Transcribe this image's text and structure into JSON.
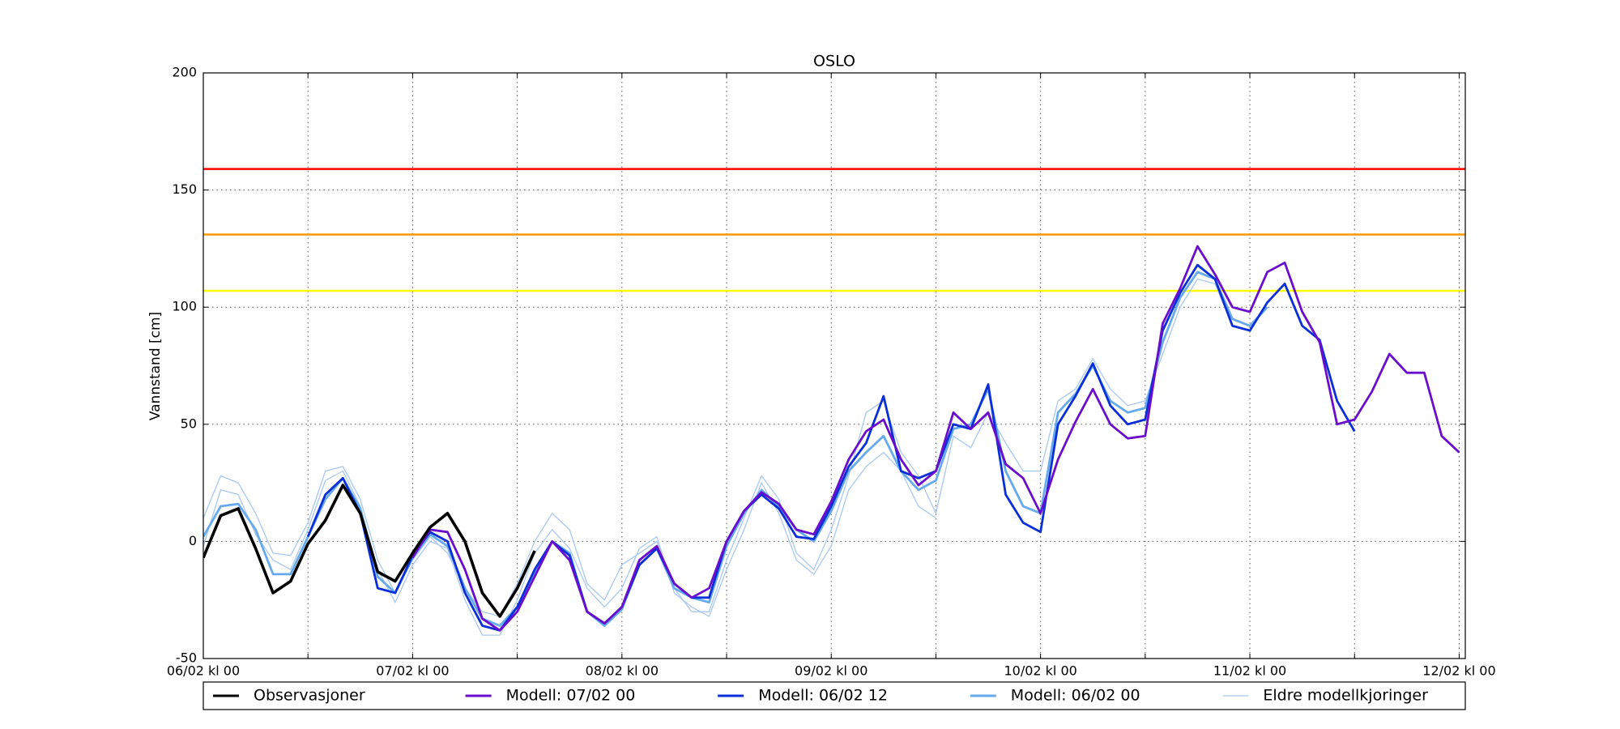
{
  "chart_data": {
    "type": "line",
    "title": "OSLO",
    "y_label": "Vannstand [cm]",
    "x": [
      0,
      2,
      4,
      6,
      8,
      10,
      12,
      14,
      16,
      18,
      20,
      22,
      24,
      26,
      28,
      30,
      32,
      34,
      36,
      38,
      40,
      42,
      44,
      46,
      48,
      50,
      52,
      54,
      56,
      58,
      60,
      62,
      64,
      66,
      68,
      70,
      72,
      74,
      76,
      78,
      80,
      82,
      84,
      86,
      88,
      90,
      92,
      94,
      96,
      98,
      100,
      102,
      104,
      106,
      108,
      110,
      112,
      114,
      116,
      118,
      120,
      122,
      124,
      126,
      128,
      130,
      132,
      134,
      136,
      138,
      140,
      142,
      144
    ],
    "xlim": [
      0,
      144.7
    ],
    "xticks": [
      {
        "value": 0,
        "label": "06/02 kl 00"
      },
      {
        "value": 24,
        "label": "07/02 kl 00"
      },
      {
        "value": 48,
        "label": "08/02 kl 00"
      },
      {
        "value": 72,
        "label": "09/02 kl 00"
      },
      {
        "value": 96,
        "label": "10/02 kl 00"
      },
      {
        "value": 120,
        "label": "11/02 kl 00"
      },
      {
        "value": 144,
        "label": "12/02 kl 00"
      }
    ],
    "xminor_ticks": [
      12,
      36,
      60,
      84,
      108,
      132
    ],
    "ylim": [
      -50,
      200
    ],
    "yticks": [
      -50,
      0,
      50,
      100,
      150,
      200
    ],
    "grid": true,
    "thresholds": [
      {
        "value": 159,
        "color": "#ff0000"
      },
      {
        "value": 131,
        "color": "#ff9900"
      },
      {
        "value": 107,
        "color": "#ffff00"
      }
    ],
    "legend": "bottom",
    "series": [
      {
        "name": "Observasjoner",
        "color": "#000000",
        "values": [
          -7,
          11,
          14,
          -3,
          -22,
          -17,
          -1,
          9,
          24,
          12,
          -13,
          -17,
          -5,
          6,
          12,
          0,
          -22,
          -32,
          -20,
          -4,
          null,
          null,
          null,
          null,
          null,
          null,
          null,
          null,
          null,
          null,
          null,
          null,
          null,
          null,
          null,
          null,
          null,
          null,
          null,
          null,
          null,
          null,
          null,
          null,
          null,
          null,
          null,
          null,
          null,
          null,
          null,
          null,
          null,
          null,
          null,
          null,
          null,
          null,
          null,
          null,
          null,
          null,
          null,
          null,
          null,
          null,
          null,
          null,
          null,
          null,
          null,
          null,
          null
        ]
      },
      {
        "name": "Modell: 07/02 00",
        "color": "#6a0dcc",
        "values": [
          null,
          null,
          null,
          null,
          null,
          null,
          null,
          null,
          null,
          null,
          null,
          null,
          -7,
          5,
          4,
          -12,
          -33,
          -38,
          -30,
          -15,
          0,
          -8,
          -30,
          -35,
          -28,
          -8,
          -2,
          -18,
          -24,
          -20,
          0,
          13,
          21,
          16,
          5,
          3,
          17,
          35,
          47,
          52,
          35,
          24,
          30,
          55,
          48,
          55,
          33,
          27,
          12,
          35,
          51,
          65,
          50,
          44,
          45,
          93,
          108,
          126,
          114,
          100,
          98,
          115,
          119,
          98,
          85,
          50,
          52,
          64,
          80,
          72,
          72,
          45,
          38
        ]
      },
      {
        "name": "Modell: 06/02 12",
        "color": "#0a2ed8",
        "values": [
          null,
          null,
          null,
          null,
          null,
          null,
          2,
          20,
          27,
          12,
          -20,
          -22,
          -6,
          4,
          0,
          -22,
          -36,
          -38,
          -28,
          -12,
          0,
          -6,
          -30,
          -35,
          -28,
          -10,
          -3,
          -18,
          -24,
          -24,
          0,
          13,
          20,
          14,
          2,
          1,
          15,
          32,
          42,
          62,
          30,
          27,
          30,
          50,
          48,
          67,
          20,
          8,
          4,
          50,
          62,
          76,
          58,
          50,
          52,
          90,
          106,
          118,
          112,
          92,
          90,
          102,
          110,
          92,
          86,
          60,
          47,
          null,
          null,
          null,
          null,
          null,
          null
        ]
      },
      {
        "name": "Modell: 06/02 00",
        "color": "#66aaee",
        "values": [
          2,
          15,
          16,
          5,
          -14,
          -14,
          2,
          18,
          27,
          14,
          -15,
          -22,
          -7,
          3,
          -2,
          -20,
          -33,
          -36,
          -28,
          -13,
          0,
          -5,
          -30,
          -36,
          -29,
          -10,
          -3,
          -20,
          -24,
          -26,
          -2,
          12,
          22,
          15,
          5,
          0,
          13,
          30,
          38,
          45,
          30,
          22,
          26,
          48,
          50,
          65,
          30,
          15,
          12,
          55,
          63,
          75,
          60,
          55,
          57,
          85,
          104,
          115,
          112,
          95,
          92,
          100,
          null,
          null,
          null,
          null,
          null,
          null,
          null,
          null,
          null,
          null,
          null
        ]
      },
      {
        "name": "Eldre modellkjoringer",
        "color": "#a9c8f0",
        "runs": [
          [
            10,
            28,
            25,
            12,
            -5,
            -6,
            8,
            30,
            32,
            18,
            -8,
            -22,
            -8,
            2,
            -5,
            -20,
            -30,
            -32,
            -18,
            0,
            12,
            5,
            -18,
            -25,
            -10,
            -5,
            0,
            -20,
            -30,
            -30,
            -8,
            10,
            28,
            18,
            -5,
            -12,
            5,
            28,
            55,
            60,
            38,
            28,
            12,
            45,
            40,
            55,
            42,
            30,
            30,
            60,
            65,
            78,
            65,
            58,
            60,
            80,
            100,
            112,
            110,
            92,
            90,
            null,
            null,
            null,
            null,
            null,
            null,
            null,
            null,
            null,
            null,
            null,
            null
          ],
          [
            -2,
            22,
            20,
            3,
            -8,
            -12,
            5,
            26,
            30,
            15,
            -12,
            -26,
            -10,
            0,
            -3,
            -25,
            -40,
            -40,
            -25,
            -5,
            5,
            -3,
            -20,
            -28,
            -20,
            -3,
            2,
            -22,
            -28,
            -32,
            -12,
            5,
            25,
            12,
            -8,
            -14,
            -2,
            22,
            32,
            38,
            30,
            15,
            10,
            null,
            null,
            null,
            null,
            null,
            null,
            null,
            null,
            null,
            null,
            null,
            null,
            null,
            null,
            null,
            null,
            null,
            null,
            null,
            null,
            null,
            null,
            null,
            null,
            null,
            null,
            null,
            null,
            null,
            null
          ]
        ]
      }
    ]
  }
}
